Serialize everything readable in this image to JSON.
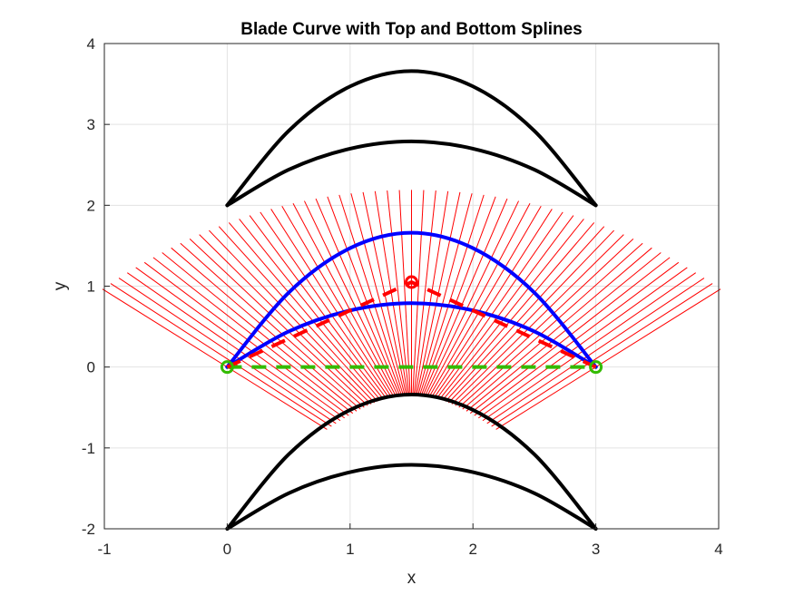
{
  "chart_data": {
    "type": "line",
    "title": "Blade Curve with Top and Bottom Splines",
    "xlabel": "x",
    "ylabel": "y",
    "xlim": [
      -1,
      4
    ],
    "ylim": [
      -2,
      4
    ],
    "xticks": [
      -1,
      0,
      1,
      2,
      3,
      4
    ],
    "yticks": [
      -2,
      -1,
      0,
      1,
      2,
      3,
      4
    ],
    "xtick_labels": [
      "-1",
      "0",
      "1",
      "2",
      "3",
      "4"
    ],
    "ytick_labels": [
      "-2",
      "-1",
      "0",
      "1",
      "2",
      "3",
      "4"
    ],
    "grid": true,
    "legend": "none",
    "colors": {
      "camber": "#0000ff",
      "splines": "#000000",
      "normals": "#ff0000",
      "chord": "#33bb00",
      "control_polygon": "#ff0000"
    },
    "blade": {
      "x_start": 0,
      "x_end": 3,
      "top_peak": 1.66,
      "bottom_peak": 0.79,
      "top_spline_offset": 2,
      "bottom_spline_offset": -2,
      "normal_line_count": 61,
      "normal_line_length": 1.4
    },
    "series": [
      {
        "name": "",
        "color": "#0000ff",
        "role": "camber-top",
        "x": [
          0,
          0.5,
          1.0,
          1.5,
          2.0,
          2.5,
          3.0
        ],
        "y": [
          0,
          0.92,
          1.47,
          1.66,
          1.47,
          0.92,
          0
        ]
      },
      {
        "name": "",
        "color": "#0000ff",
        "role": "camber-bottom",
        "x": [
          0,
          0.5,
          1.0,
          1.5,
          2.0,
          2.5,
          3.0
        ],
        "y": [
          0,
          0.44,
          0.7,
          0.79,
          0.7,
          0.44,
          0
        ]
      },
      {
        "name": "",
        "color": "#000000",
        "role": "upper-blade-top",
        "x": [
          0,
          0.5,
          1.0,
          1.5,
          2.0,
          2.5,
          3.0
        ],
        "y": [
          2,
          2.92,
          3.47,
          3.66,
          3.47,
          2.92,
          2
        ]
      },
      {
        "name": "",
        "color": "#000000",
        "role": "upper-blade-bottom",
        "x": [
          0,
          0.5,
          1.0,
          1.5,
          2.0,
          2.5,
          3.0
        ],
        "y": [
          2,
          2.44,
          2.7,
          2.79,
          2.7,
          2.44,
          2
        ]
      },
      {
        "name": "",
        "color": "#000000",
        "role": "lower-blade-top",
        "x": [
          0,
          0.5,
          1.0,
          1.5,
          2.0,
          2.5,
          3.0
        ],
        "y": [
          -2,
          -1.08,
          -0.53,
          -0.34,
          -0.53,
          -1.08,
          -2
        ]
      },
      {
        "name": "",
        "color": "#000000",
        "role": "lower-blade-bottom",
        "x": [
          0,
          0.5,
          1.0,
          1.5,
          2.0,
          2.5,
          3.0
        ],
        "y": [
          -2,
          -1.56,
          -1.3,
          -1.21,
          -1.3,
          -1.56,
          -2
        ]
      },
      {
        "name": "",
        "color": "#33bb00",
        "role": "chord-dashed",
        "x": [
          0,
          3
        ],
        "y": [
          0,
          0
        ]
      },
      {
        "name": "",
        "color": "#ff0000",
        "role": "control-polygon-dashed",
        "x": [
          0,
          1.5,
          3
        ],
        "y": [
          0,
          1.05,
          0
        ]
      }
    ],
    "markers": [
      {
        "role": "chord-endpoint",
        "color": "#33bb00",
        "x": 0,
        "y": 0
      },
      {
        "role": "chord-endpoint",
        "color": "#33bb00",
        "x": 3,
        "y": 0
      },
      {
        "role": "control-point",
        "color": "#ff0000",
        "x": 1.5,
        "y": 1.05
      }
    ]
  }
}
